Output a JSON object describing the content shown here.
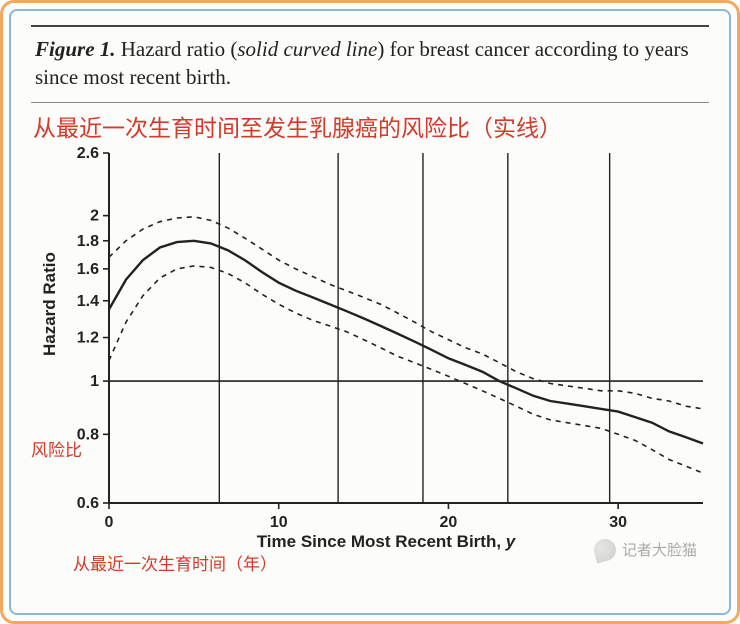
{
  "caption": {
    "label": "Figure 1.",
    "before_paren": " Hazard ratio (",
    "paren": "solid curved line",
    "after_paren": ") for breast cancer according to years since most recent birth."
  },
  "subtitle_cn": "从最近一次生育时间至发生乳腺癌的风险比（实线）",
  "chart": {
    "type": "line",
    "background_color": "#fcfcfa",
    "axis_color": "#222222",
    "grid_vline_color": "#222222",
    "xlim": [
      0,
      35
    ],
    "ylim_log": [
      0.6,
      2.6
    ],
    "xticks": [
      0,
      10,
      20,
      30
    ],
    "yticks": [
      0.6,
      0.8,
      1,
      1.2,
      1.4,
      1.6,
      1.8,
      2,
      2.6
    ],
    "vlines_x": [
      6.5,
      13.5,
      18.5,
      23.5,
      29.5
    ],
    "hline_y": 1.0,
    "ylabel": "Hazard Ratio",
    "ylabel_cn": "风险比",
    "xlabel_prefix": "Time Since Most Recent Birth, ",
    "xlabel_ital": "y",
    "xlabel_cn": "从最近一次生育时间（年）",
    "series": {
      "solid": {
        "color": "#222222",
        "width": 2.4,
        "dash": "none",
        "points": [
          [
            0,
            1.35
          ],
          [
            1,
            1.53
          ],
          [
            2,
            1.66
          ],
          [
            3,
            1.75
          ],
          [
            4,
            1.79
          ],
          [
            5,
            1.8
          ],
          [
            6,
            1.78
          ],
          [
            7,
            1.73
          ],
          [
            8,
            1.66
          ],
          [
            9,
            1.58
          ],
          [
            10,
            1.51
          ],
          [
            11,
            1.46
          ],
          [
            12,
            1.42
          ],
          [
            13,
            1.38
          ],
          [
            14,
            1.34
          ],
          [
            15,
            1.3
          ],
          [
            16,
            1.26
          ],
          [
            17,
            1.22
          ],
          [
            18,
            1.18
          ],
          [
            19,
            1.14
          ],
          [
            20,
            1.1
          ],
          [
            21,
            1.07
          ],
          [
            22,
            1.04
          ],
          [
            23,
            1.0
          ],
          [
            24,
            0.97
          ],
          [
            25,
            0.94
          ],
          [
            26,
            0.92
          ],
          [
            27,
            0.91
          ],
          [
            28,
            0.9
          ],
          [
            29,
            0.89
          ],
          [
            30,
            0.88
          ],
          [
            31,
            0.86
          ],
          [
            32,
            0.84
          ],
          [
            33,
            0.81
          ],
          [
            34,
            0.79
          ],
          [
            35,
            0.77
          ]
        ]
      },
      "upper": {
        "color": "#222222",
        "width": 1.6,
        "dash": "5,5",
        "points": [
          [
            0,
            1.68
          ],
          [
            1,
            1.8
          ],
          [
            2,
            1.89
          ],
          [
            3,
            1.95
          ],
          [
            4,
            1.98
          ],
          [
            5,
            1.99
          ],
          [
            6,
            1.96
          ],
          [
            7,
            1.9
          ],
          [
            8,
            1.82
          ],
          [
            9,
            1.74
          ],
          [
            10,
            1.66
          ],
          [
            11,
            1.6
          ],
          [
            12,
            1.55
          ],
          [
            13,
            1.5
          ],
          [
            14,
            1.46
          ],
          [
            15,
            1.42
          ],
          [
            16,
            1.38
          ],
          [
            17,
            1.33
          ],
          [
            18,
            1.28
          ],
          [
            19,
            1.23
          ],
          [
            20,
            1.19
          ],
          [
            21,
            1.15
          ],
          [
            22,
            1.12
          ],
          [
            23,
            1.08
          ],
          [
            24,
            1.04
          ],
          [
            25,
            1.01
          ],
          [
            26,
            0.99
          ],
          [
            27,
            0.98
          ],
          [
            28,
            0.97
          ],
          [
            29,
            0.96
          ],
          [
            30,
            0.96
          ],
          [
            31,
            0.95
          ],
          [
            32,
            0.93
          ],
          [
            33,
            0.92
          ],
          [
            34,
            0.9
          ],
          [
            35,
            0.89
          ]
        ]
      },
      "lower": {
        "color": "#222222",
        "width": 1.6,
        "dash": "5,5",
        "points": [
          [
            0,
            1.09
          ],
          [
            1,
            1.28
          ],
          [
            2,
            1.43
          ],
          [
            3,
            1.54
          ],
          [
            4,
            1.6
          ],
          [
            5,
            1.62
          ],
          [
            6,
            1.61
          ],
          [
            7,
            1.57
          ],
          [
            8,
            1.51
          ],
          [
            9,
            1.44
          ],
          [
            10,
            1.38
          ],
          [
            11,
            1.33
          ],
          [
            12,
            1.29
          ],
          [
            13,
            1.26
          ],
          [
            14,
            1.23
          ],
          [
            15,
            1.19
          ],
          [
            16,
            1.15
          ],
          [
            17,
            1.11
          ],
          [
            18,
            1.08
          ],
          [
            19,
            1.05
          ],
          [
            20,
            1.02
          ],
          [
            21,
            0.99
          ],
          [
            22,
            0.96
          ],
          [
            23,
            0.93
          ],
          [
            24,
            0.9
          ],
          [
            25,
            0.87
          ],
          [
            26,
            0.85
          ],
          [
            27,
            0.84
          ],
          [
            28,
            0.83
          ],
          [
            29,
            0.82
          ],
          [
            30,
            0.8
          ],
          [
            31,
            0.78
          ],
          [
            32,
            0.75
          ],
          [
            33,
            0.72
          ],
          [
            34,
            0.7
          ],
          [
            35,
            0.68
          ]
        ]
      }
    }
  },
  "watermark": "记者大脸猫"
}
